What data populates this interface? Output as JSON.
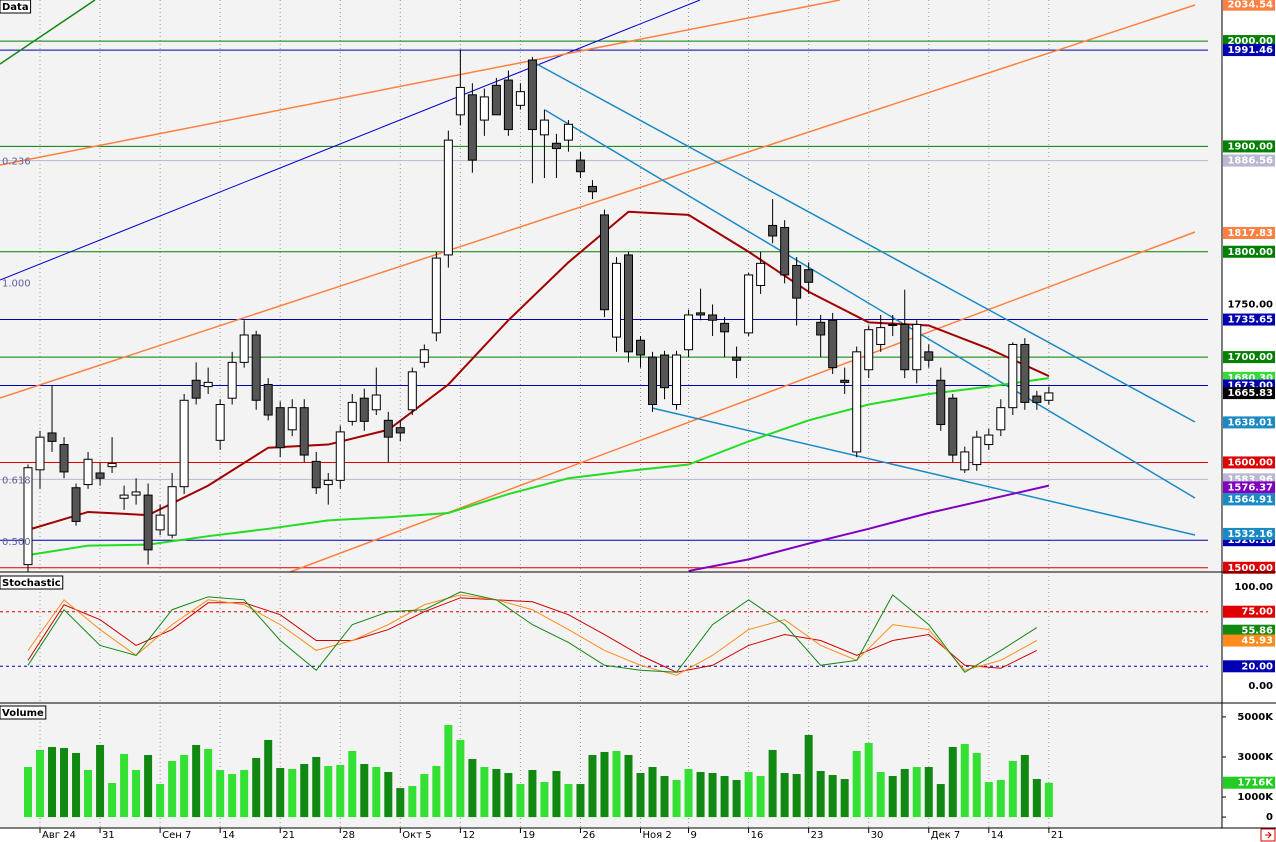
{
  "chart_data": [
    {
      "type": "candlestick",
      "title": "Data",
      "categories": [
        null,
        "Авг 24",
        null,
        null,
        null,
        null,
        "31",
        null,
        null,
        null,
        null,
        "Сен 7",
        null,
        null,
        null,
        null,
        "14",
        null,
        null,
        null,
        null,
        "21",
        null,
        null,
        null,
        null,
        "28",
        null,
        null,
        null,
        null,
        "Окт 5",
        null,
        null,
        null,
        null,
        "12",
        null,
        null,
        null,
        null,
        "19",
        null,
        null,
        null,
        null,
        "26",
        null,
        null,
        null,
        null,
        "Ноя 2",
        null,
        null,
        null,
        "9",
        null,
        null,
        null,
        null,
        "16",
        null,
        null,
        null,
        null,
        "23",
        null,
        null,
        null,
        null,
        "30",
        null,
        null,
        null,
        null,
        "Дек 7",
        null,
        null,
        null,
        null,
        "14",
        null,
        null,
        null,
        null,
        "21"
      ],
      "open": [
        1503,
        1593,
        1628,
        1617,
        1576,
        1579,
        1590,
        1596,
        1566,
        1569,
        1569,
        1536,
        1531,
        1577,
        1678,
        1672,
        1621,
        1661,
        1695,
        1721,
        1674,
        1652,
        1631,
        1652,
        1601,
        1579,
        1583,
        1639,
        1661,
        1650,
        1640,
        1633,
        1650,
        1695,
        1723,
        1797,
        1930,
        1949,
        1925,
        1958,
        1963,
        1939,
        1982,
        1911,
        1903,
        1906,
        1887,
        1862,
        1835,
        1719,
        1797,
        1716,
        1700,
        1702,
        1655,
        1707,
        1742,
        1740,
        1732,
        1700,
        1723,
        1768,
        1825,
        1823,
        1787,
        1783,
        1733,
        1735,
        1678,
        1610,
        1688,
        1712,
        1731,
        1731,
        1688,
        1705,
        1678,
        1661,
        1593,
        1598,
        1617,
        1631,
        1652,
        1712,
        1663,
        1659
      ],
      "high": [
        1598,
        1630,
        1673,
        1624,
        1580,
        1610,
        1600,
        1624,
        1578,
        1585,
        1580,
        1560,
        1590,
        1665,
        1695,
        1690,
        1660,
        1705,
        1735,
        1725,
        1680,
        1658,
        1660,
        1660,
        1610,
        1590,
        1635,
        1665,
        1670,
        1690,
        1648,
        1640,
        1690,
        1712,
        1800,
        1915,
        1992,
        1960,
        1955,
        1965,
        1972,
        1960,
        1985,
        1935,
        1912,
        1925,
        1895,
        1868,
        1840,
        1795,
        1800,
        1720,
        1705,
        1706,
        1706,
        1745,
        1765,
        1750,
        1738,
        1710,
        1780,
        1800,
        1850,
        1830,
        1795,
        1790,
        1740,
        1742,
        1690,
        1710,
        1730,
        1740,
        1740,
        1764,
        1735,
        1712,
        1690,
        1665,
        1615,
        1630,
        1632,
        1660,
        1714,
        1718,
        1668,
        1672
      ],
      "low": [
        1496,
        1575,
        1610,
        1585,
        1540,
        1575,
        1578,
        1590,
        1555,
        1560,
        1503,
        1531,
        1528,
        1570,
        1655,
        1665,
        1612,
        1655,
        1690,
        1650,
        1640,
        1605,
        1625,
        1600,
        1570,
        1560,
        1575,
        1635,
        1630,
        1645,
        1600,
        1620,
        1645,
        1690,
        1715,
        1785,
        1920,
        1875,
        1910,
        1930,
        1910,
        1935,
        1865,
        1870,
        1870,
        1895,
        1870,
        1850,
        1738,
        1705,
        1695,
        1690,
        1648,
        1660,
        1650,
        1700,
        1735,
        1720,
        1700,
        1680,
        1720,
        1760,
        1808,
        1770,
        1730,
        1760,
        1700,
        1684,
        1665,
        1605,
        1680,
        1705,
        1720,
        1680,
        1675,
        1690,
        1630,
        1600,
        1590,
        1592,
        1612,
        1625,
        1645,
        1650,
        1650,
        1655
      ],
      "close": [
        1595,
        1624,
        1620,
        1591,
        1544,
        1603,
        1585,
        1599,
        1569,
        1572,
        1517,
        1550,
        1577,
        1659,
        1661,
        1676,
        1655,
        1695,
        1721,
        1659,
        1645,
        1614,
        1652,
        1607,
        1576,
        1583,
        1629,
        1657,
        1639,
        1664,
        1624,
        1628,
        1686,
        1707,
        1794,
        1906,
        1956,
        1887,
        1947,
        1930,
        1916,
        1952,
        1916,
        1925,
        1898,
        1921,
        1876,
        1857,
        1745,
        1789,
        1705,
        1702,
        1655,
        1671,
        1702,
        1740,
        1740,
        1735,
        1724,
        1697,
        1778,
        1789,
        1815,
        1778,
        1756,
        1771,
        1721,
        1690,
        1676,
        1705,
        1726,
        1728,
        1730,
        1688,
        1731,
        1697,
        1636,
        1607,
        1610,
        1624,
        1626,
        1652,
        1712,
        1657,
        1657,
        1666
      ],
      "up_color": "#ffffff",
      "down_color": "#555555",
      "moving_averages": [
        {
          "color": "#a00000",
          "x": [
            0,
            5,
            10,
            15,
            20,
            25,
            30,
            35,
            40,
            45,
            50,
            55,
            60,
            65,
            70,
            75,
            80,
            85
          ],
          "values": [
            1536,
            1553,
            1550,
            1578,
            1614,
            1617,
            1631,
            1674,
            1735,
            1790,
            1838,
            1835,
            1800,
            1762,
            1733,
            1730,
            1708,
            1682
          ]
        },
        {
          "color": "#22dd22",
          "x": [
            0,
            5,
            10,
            15,
            20,
            25,
            30,
            35,
            40,
            45,
            50,
            55,
            60,
            65,
            70,
            75,
            80,
            85
          ],
          "values": [
            1512,
            1521,
            1522,
            1530,
            1537,
            1545,
            1548,
            1552,
            1570,
            1585,
            1592,
            1598,
            1620,
            1640,
            1655,
            1665,
            1672,
            1680
          ]
        },
        {
          "color": "#8000c0",
          "x": [
            55,
            60,
            65,
            70,
            75,
            80,
            85
          ],
          "values": [
            1497,
            1508,
            1523,
            1537,
            1552,
            1565,
            1578
          ]
        }
      ],
      "ylim": [
        1496,
        2039
      ],
      "levels": [
        {
          "value": 2034.54,
          "label": "2034.54",
          "color": "#ff8040"
        },
        {
          "value": 2000,
          "label": "2000.00",
          "color": "#008000",
          "line": "solid"
        },
        {
          "value": 1991.46,
          "label": "1991.46",
          "color": "#0000b0",
          "line": "solid"
        },
        {
          "value": 1900,
          "label": "1900.00",
          "color": "#008000",
          "line": "solid"
        },
        {
          "value": 1886.56,
          "label": "1886.56",
          "color": "#b8b8d0",
          "line": "solid"
        },
        {
          "value": 1817.83,
          "label": "1817.83",
          "color": "#ff8040"
        },
        {
          "value": 1800,
          "label": "1800.00",
          "color": "#008000",
          "line": "solid"
        },
        {
          "value": 1750,
          "label": "1750.00"
        },
        {
          "value": 1735.65,
          "label": "1735.65",
          "color": "#0000b0",
          "line": "solid"
        },
        {
          "value": 1700,
          "label": "1700.00",
          "color": "#008000",
          "line": "solid"
        },
        {
          "value": 1680.3,
          "label": "1680.30",
          "color": "#33dd33"
        },
        {
          "value": 1673,
          "label": "1673.00",
          "color": "#0000b0",
          "line": "solid"
        },
        {
          "value": 1665.83,
          "label": "1665.83",
          "color": "#000000"
        },
        {
          "value": 1638.01,
          "label": "1638.01",
          "color": "#1a8ac4"
        },
        {
          "value": 1600,
          "label": "1600.00",
          "color": "#e00000",
          "line": "solid"
        },
        {
          "value": 1583.96,
          "label": "1583.96",
          "color": "#b8b8d0",
          "line": "solid"
        },
        {
          "value": 1576.37,
          "label": "1576.37",
          "color": "#8000c0"
        },
        {
          "value": 1564.91,
          "label": "1564.91",
          "color": "#1a8ac4"
        },
        {
          "value": 1526.18,
          "label": "1526.18",
          "color": "#0000b0",
          "line": "solid"
        },
        {
          "value": 1532.16,
          "label": "1532.16",
          "color": "#1a8ac4"
        },
        {
          "value": 1500,
          "label": "1500.00",
          "color": "#e00000",
          "line": "solid"
        }
      ],
      "fib_labels": [
        {
          "value": 1880,
          "label": "0.236"
        },
        {
          "value": 1764,
          "label": "1.000"
        },
        {
          "value": 1577,
          "label": "0.618"
        },
        {
          "value": 1519,
          "label": "0.500"
        }
      ]
    },
    {
      "type": "line",
      "title": "Stochastic",
      "series": [
        {
          "color": "#d00000",
          "x": [
            0,
            3,
            6,
            9,
            12,
            15,
            18,
            21,
            24,
            27,
            30,
            33,
            36,
            39,
            42,
            45,
            48,
            51,
            54,
            57,
            60,
            63,
            66,
            69,
            72,
            75,
            78,
            81,
            84
          ],
          "values": [
            26,
            82,
            67,
            41,
            57,
            84,
            84,
            72,
            46,
            46,
            57,
            75,
            89,
            87,
            85,
            72,
            52,
            31,
            14,
            21,
            41,
            52,
            46,
            31,
            46,
            52,
            21,
            18,
            36
          ]
        },
        {
          "color": "#ff8c1a",
          "x": [
            0,
            3,
            6,
            9,
            12,
            15,
            18,
            21,
            24,
            27,
            30,
            33,
            36,
            39,
            42,
            45,
            48,
            51,
            54,
            57,
            60,
            63,
            66,
            69,
            72,
            75,
            78,
            81,
            84
          ],
          "values": [
            36,
            87,
            57,
            31,
            62,
            87,
            82,
            62,
            36,
            46,
            62,
            82,
            92,
            87,
            77,
            57,
            36,
            21,
            11,
            31,
            57,
            67,
            41,
            26,
            62,
            57,
            16,
            26,
            46
          ]
        },
        {
          "color": "#118811",
          "x": [
            0,
            3,
            6,
            9,
            12,
            15,
            18,
            21,
            24,
            27,
            30,
            33,
            36,
            39,
            42,
            45,
            48,
            51,
            54,
            57,
            60,
            63,
            66,
            69,
            72,
            75,
            78,
            81,
            84
          ],
          "values": [
            21,
            77,
            41,
            31,
            77,
            90,
            87,
            46,
            16,
            62,
            75,
            77,
            95,
            87,
            62,
            44,
            21,
            16,
            14,
            62,
            87,
            62,
            21,
            26,
            92,
            62,
            14,
            36,
            59
          ]
        }
      ],
      "ylim": [
        -17,
        111
      ],
      "levels": [
        {
          "value": 100,
          "label": "100.00"
        },
        {
          "value": 75,
          "label": "75.00",
          "color": "#e00000",
          "line": "dash"
        },
        {
          "value": 55.86,
          "label": "55.86",
          "color": "#118811"
        },
        {
          "value": 45.93,
          "label": "45.93",
          "color": "#ff8c1a"
        },
        {
          "value": 20,
          "label": "20.00",
          "color": "#0000b0",
          "line": "dash"
        },
        {
          "value": 0,
          "label": "0.00"
        }
      ]
    },
    {
      "type": "bar",
      "title": "Volume",
      "values": [
        2500,
        3350,
        3500,
        3450,
        3200,
        2350,
        3600,
        1700,
        3150,
        2350,
        3100,
        1650,
        2800,
        3100,
        3600,
        3400,
        2350,
        2150,
        2350,
        2950,
        3850,
        2450,
        2400,
        2650,
        3000,
        2550,
        2600,
        3300,
        2650,
        2500,
        2250,
        1450,
        1550,
        2150,
        2550,
        4600,
        3850,
        2900,
        2500,
        2400,
        2200,
        1650,
        2350,
        1750,
        2300,
        1650,
        1650,
        3100,
        3250,
        3300,
        3100,
        2200,
        2500,
        2050,
        1850,
        2400,
        2250,
        2200,
        2050,
        1850,
        2250,
        2050,
        3350,
        2200,
        2150,
        4100,
        2300,
        2100,
        1900,
        3300,
        3700,
        2250,
        2050,
        2400,
        2500,
        2500,
        1650,
        3500,
        3650,
        3200,
        1750,
        1850,
        2800,
        3100,
        1900,
        1716
      ],
      "up_color": "#33e033",
      "down_color": "#118811",
      "ylim": [
        -545,
        5545
      ],
      "yticks": [
        {
          "value": 5000,
          "label": "5000K"
        },
        {
          "value": 3000,
          "label": "3000K"
        },
        {
          "value": 1000,
          "label": "1000K"
        },
        0
      ],
      "levels": [
        {
          "value": 1716,
          "label": "1716K",
          "color": "#22cc22"
        }
      ]
    }
  ]
}
